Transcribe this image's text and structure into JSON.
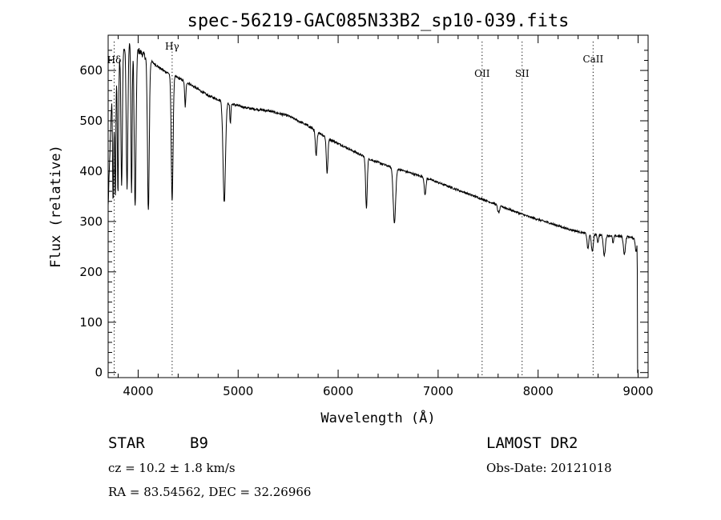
{
  "chart_data": {
    "type": "line",
    "title": "spec-56219-GAC085N33B2_sp10-039.fits",
    "xlabel": "Wavelength (Å)",
    "ylabel": "Flux (relative)",
    "xlim": [
      3700,
      9100
    ],
    "ylim": [
      -10,
      670
    ],
    "x_ticks": [
      4000,
      5000,
      6000,
      7000,
      8000,
      9000
    ],
    "y_ticks": [
      0,
      100,
      200,
      300,
      400,
      500,
      600
    ],
    "grid": false,
    "continuum": [
      [
        3700,
        330
      ],
      [
        3740,
        570
      ],
      [
        3780,
        610
      ],
      [
        3830,
        635
      ],
      [
        3880,
        650
      ],
      [
        3940,
        655
      ],
      [
        4000,
        640
      ],
      [
        4060,
        630
      ],
      [
        4150,
        615
      ],
      [
        4250,
        600
      ],
      [
        4350,
        590
      ],
      [
        4500,
        575
      ],
      [
        4700,
        550
      ],
      [
        4900,
        535
      ],
      [
        5100,
        525
      ],
      [
        5300,
        520
      ],
      [
        5500,
        510
      ],
      [
        5700,
        490
      ],
      [
        5900,
        465
      ],
      [
        6100,
        445
      ],
      [
        6300,
        425
      ],
      [
        6500,
        410
      ],
      [
        6700,
        398
      ],
      [
        6900,
        385
      ],
      [
        7100,
        370
      ],
      [
        7300,
        355
      ],
      [
        7500,
        340
      ],
      [
        7700,
        325
      ],
      [
        7900,
        310
      ],
      [
        8100,
        298
      ],
      [
        8300,
        285
      ],
      [
        8500,
        275
      ],
      [
        8700,
        272
      ],
      [
        8900,
        270
      ],
      [
        8990,
        265
      ],
      [
        9000,
        0
      ]
    ],
    "absorption": [
      {
        "center": 3750,
        "depth": 240,
        "width": 6
      },
      {
        "center": 3771,
        "depth": 250,
        "width": 6
      },
      {
        "center": 3798,
        "depth": 260,
        "width": 6
      },
      {
        "center": 3835,
        "depth": 270,
        "width": 7
      },
      {
        "center": 3889,
        "depth": 280,
        "width": 8
      },
      {
        "center": 3934,
        "depth": 300,
        "width": 6
      },
      {
        "center": 3970,
        "depth": 320,
        "width": 9
      },
      {
        "center": 4102,
        "depth": 300,
        "width": 9
      },
      {
        "center": 4340,
        "depth": 250,
        "width": 9
      },
      {
        "center": 4471,
        "depth": 50,
        "width": 6
      },
      {
        "center": 4861,
        "depth": 200,
        "width": 12
      },
      {
        "center": 4922,
        "depth": 40,
        "width": 5
      },
      {
        "center": 5780,
        "depth": 50,
        "width": 8
      },
      {
        "center": 5890,
        "depth": 70,
        "width": 8
      },
      {
        "center": 6283,
        "depth": 100,
        "width": 8
      },
      {
        "center": 6563,
        "depth": 110,
        "width": 12
      },
      {
        "center": 6870,
        "depth": 35,
        "width": 8
      },
      {
        "center": 7605,
        "depth": 15,
        "width": 10
      },
      {
        "center": 8498,
        "depth": 30,
        "width": 8
      },
      {
        "center": 8542,
        "depth": 35,
        "width": 9
      },
      {
        "center": 8598,
        "depth": 15,
        "width": 6
      },
      {
        "center": 8662,
        "depth": 40,
        "width": 10
      },
      {
        "center": 8750,
        "depth": 15,
        "width": 6
      },
      {
        "center": 8863,
        "depth": 35,
        "width": 10
      },
      {
        "center": 8980,
        "depth": 25,
        "width": 8
      }
    ],
    "line_markers": [
      {
        "label": "Hδ",
        "wavelength": 3760
      },
      {
        "label": "Hγ",
        "wavelength": 4340
      },
      {
        "label": "OII",
        "wavelength": 7440
      },
      {
        "label": "SII",
        "wavelength": 7840
      },
      {
        "label": "CaII",
        "wavelength": 8550
      }
    ]
  },
  "info": {
    "class_label": "STAR",
    "subclass": "B9",
    "survey": "LAMOST DR2",
    "redshift": "cz = 10.2 ± 1.8 km/s",
    "obs_date": "Obs-Date: 20121018",
    "coords": "RA =  83.54562, DEC =  32.26966"
  }
}
